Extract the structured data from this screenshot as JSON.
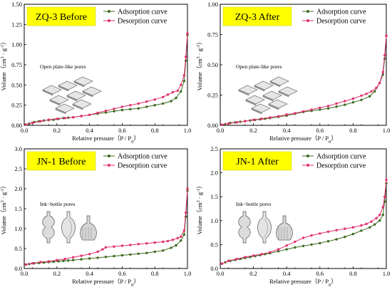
{
  "chart_data": [
    {
      "type": "line",
      "title": "ZQ-3 Before",
      "xlabel": "Relative pressure（P / P0）",
      "ylabel": "Volume（cm3 · g-1）",
      "xlim": [
        0,
        1.0
      ],
      "ylim": [
        0,
        1.5
      ],
      "xticks": [
        "0.0",
        "0.2",
        "0.4",
        "0.6",
        "0.8",
        "1.0"
      ],
      "yticks": [
        "0.00",
        "0.25",
        "0.50",
        "0.75",
        "1.00",
        "1.25",
        "1.50"
      ],
      "yticks_values": [
        0,
        0.25,
        0.5,
        0.75,
        1.0,
        1.25,
        1.5
      ],
      "legend": [
        "Adsorption curve",
        "Desorption curve"
      ],
      "annotation": "Open plate-like pores",
      "pore_shape": "plates",
      "series": [
        {
          "name": "Adsorption curve",
          "color": "#3d6b1f",
          "x": [
            0.01,
            0.03,
            0.06,
            0.09,
            0.12,
            0.15,
            0.18,
            0.21,
            0.24,
            0.27,
            0.3,
            0.35,
            0.4,
            0.45,
            0.5,
            0.55,
            0.6,
            0.65,
            0.7,
            0.75,
            0.8,
            0.85,
            0.9,
            0.93,
            0.96,
            0.98,
            0.99,
            1.0
          ],
          "y": [
            0.01,
            0.02,
            0.04,
            0.05,
            0.06,
            0.065,
            0.07,
            0.08,
            0.09,
            0.095,
            0.1,
            0.115,
            0.13,
            0.145,
            0.16,
            0.175,
            0.19,
            0.2,
            0.21,
            0.23,
            0.25,
            0.27,
            0.3,
            0.34,
            0.42,
            0.55,
            0.8,
            1.12
          ]
        },
        {
          "name": "Desorption curve",
          "color": "#e0316e",
          "x": [
            0.01,
            0.05,
            0.1,
            0.15,
            0.2,
            0.25,
            0.3,
            0.35,
            0.4,
            0.45,
            0.5,
            0.55,
            0.6,
            0.65,
            0.7,
            0.75,
            0.8,
            0.85,
            0.88,
            0.91,
            0.94,
            0.96,
            0.98,
            0.99,
            1.0
          ],
          "y": [
            0.01,
            0.03,
            0.05,
            0.07,
            0.08,
            0.09,
            0.1,
            0.115,
            0.13,
            0.155,
            0.18,
            0.205,
            0.23,
            0.25,
            0.27,
            0.295,
            0.32,
            0.35,
            0.38,
            0.41,
            0.43,
            0.5,
            0.62,
            0.85,
            1.14
          ]
        }
      ]
    },
    {
      "type": "line",
      "title": "ZQ-3 After",
      "xlabel": "Relative pressure（P / P0）",
      "ylabel": "Volume（cm3 · g-1）",
      "xlim": [
        0,
        1.0
      ],
      "ylim": [
        0,
        1.0
      ],
      "xticks": [
        "0.0",
        "0.2",
        "0.4",
        "0.6",
        "0.8",
        "1.0"
      ],
      "yticks": [
        "0.00",
        "0.25",
        "0.50",
        "0.75",
        "1.00"
      ],
      "yticks_values": [
        0,
        0.25,
        0.5,
        0.75,
        1.0
      ],
      "legend": [
        "Adsorption curve",
        "Desorption curve"
      ],
      "annotation": "Open plate-like pores",
      "pore_shape": "plates",
      "series": [
        {
          "name": "Adsorption curve",
          "color": "#3d6b1f",
          "x": [
            0.01,
            0.03,
            0.06,
            0.09,
            0.12,
            0.15,
            0.18,
            0.21,
            0.24,
            0.27,
            0.3,
            0.35,
            0.4,
            0.45,
            0.5,
            0.55,
            0.6,
            0.65,
            0.7,
            0.75,
            0.8,
            0.85,
            0.9,
            0.93,
            0.96,
            0.98,
            0.99,
            1.0
          ],
          "y": [
            0.005,
            0.01,
            0.02,
            0.025,
            0.03,
            0.035,
            0.04,
            0.045,
            0.05,
            0.055,
            0.06,
            0.07,
            0.08,
            0.095,
            0.11,
            0.12,
            0.13,
            0.14,
            0.155,
            0.17,
            0.19,
            0.21,
            0.24,
            0.28,
            0.35,
            0.42,
            0.55,
            0.74
          ]
        },
        {
          "name": "Desorption curve",
          "color": "#e0316e",
          "x": [
            0.01,
            0.05,
            0.1,
            0.15,
            0.2,
            0.25,
            0.3,
            0.35,
            0.4,
            0.45,
            0.5,
            0.55,
            0.6,
            0.65,
            0.7,
            0.75,
            0.8,
            0.85,
            0.88,
            0.91,
            0.94,
            0.96,
            0.98,
            0.99,
            1.0
          ],
          "y": [
            0.005,
            0.015,
            0.025,
            0.035,
            0.045,
            0.055,
            0.065,
            0.075,
            0.09,
            0.1,
            0.115,
            0.13,
            0.145,
            0.16,
            0.18,
            0.2,
            0.22,
            0.245,
            0.26,
            0.28,
            0.31,
            0.35,
            0.44,
            0.58,
            0.74
          ]
        }
      ]
    },
    {
      "type": "line",
      "title": "JN-1 Before",
      "xlabel": "Relative pressure（P / P0）",
      "ylabel": "Volume（cm3 · g-1）",
      "xlim": [
        0,
        1.0
      ],
      "ylim": [
        0,
        3.0
      ],
      "xticks": [
        "0.0",
        "0.2",
        "0.4",
        "0.6",
        "0.8",
        "1.0"
      ],
      "yticks": [
        "0.0",
        "0.5",
        "1.0",
        "1.5",
        "2.0",
        "2.5",
        "3.0"
      ],
      "yticks_values": [
        0,
        0.5,
        1.0,
        1.5,
        2.0,
        2.5,
        3.0
      ],
      "legend": [
        "Adsorption curve",
        "Desorption curve"
      ],
      "annotation": "Ink−bottle pores",
      "pore_shape": "bottles",
      "series": [
        {
          "name": "Adsorption curve",
          "color": "#3d6b1f",
          "x": [
            0.01,
            0.03,
            0.06,
            0.09,
            0.12,
            0.15,
            0.18,
            0.21,
            0.24,
            0.27,
            0.3,
            0.35,
            0.4,
            0.45,
            0.5,
            0.55,
            0.6,
            0.65,
            0.7,
            0.75,
            0.8,
            0.85,
            0.9,
            0.93,
            0.96,
            0.98,
            0.99,
            1.0
          ],
          "y": [
            0.1,
            0.11,
            0.13,
            0.14,
            0.15,
            0.16,
            0.17,
            0.18,
            0.19,
            0.2,
            0.21,
            0.23,
            0.25,
            0.27,
            0.29,
            0.31,
            0.33,
            0.35,
            0.37,
            0.39,
            0.42,
            0.45,
            0.52,
            0.58,
            0.7,
            0.85,
            1.3,
            1.95
          ]
        },
        {
          "name": "Desorption curve",
          "color": "#e0316e",
          "x": [
            0.01,
            0.05,
            0.1,
            0.15,
            0.2,
            0.25,
            0.3,
            0.35,
            0.4,
            0.45,
            0.48,
            0.5,
            0.55,
            0.6,
            0.65,
            0.7,
            0.75,
            0.8,
            0.85,
            0.88,
            0.91,
            0.94,
            0.96,
            0.98,
            0.99,
            1.0
          ],
          "y": [
            0.1,
            0.13,
            0.16,
            0.18,
            0.21,
            0.24,
            0.28,
            0.32,
            0.36,
            0.42,
            0.48,
            0.53,
            0.55,
            0.57,
            0.59,
            0.61,
            0.63,
            0.65,
            0.67,
            0.69,
            0.72,
            0.76,
            0.8,
            0.95,
            1.4,
            2.0
          ]
        }
      ]
    },
    {
      "type": "line",
      "title": "JN-1 After",
      "xlabel": "Relative pressure（P / P0）",
      "ylabel": "Volume（cm3 · g-1）",
      "xlim": [
        0,
        1.0
      ],
      "ylim": [
        0,
        2.5
      ],
      "xticks": [
        "0.0",
        "0.2",
        "0.4",
        "0.6",
        "0.8",
        "1.0"
      ],
      "yticks": [
        "0.0",
        "0.5",
        "1.0",
        "1.5",
        "2.0",
        "2.5"
      ],
      "yticks_values": [
        0,
        0.5,
        1.0,
        1.5,
        2.0,
        2.5
      ],
      "legend": [
        "Adsorption curve",
        "Desorption curve"
      ],
      "annotation": "Ink−bottle pores",
      "pore_shape": "bottles",
      "series": [
        {
          "name": "Adsorption curve",
          "color": "#3d6b1f",
          "x": [
            0.01,
            0.03,
            0.06,
            0.09,
            0.12,
            0.15,
            0.18,
            0.21,
            0.24,
            0.27,
            0.3,
            0.35,
            0.4,
            0.45,
            0.5,
            0.55,
            0.6,
            0.65,
            0.7,
            0.75,
            0.8,
            0.85,
            0.9,
            0.93,
            0.96,
            0.98,
            0.99,
            1.0
          ],
          "y": [
            0.1,
            0.13,
            0.16,
            0.18,
            0.2,
            0.22,
            0.24,
            0.26,
            0.28,
            0.3,
            0.32,
            0.36,
            0.4,
            0.44,
            0.47,
            0.5,
            0.53,
            0.57,
            0.61,
            0.66,
            0.72,
            0.79,
            0.86,
            0.92,
            1.0,
            1.12,
            1.4,
            1.78
          ]
        },
        {
          "name": "Desorption curve",
          "color": "#e0316e",
          "x": [
            0.01,
            0.05,
            0.1,
            0.15,
            0.2,
            0.25,
            0.3,
            0.35,
            0.4,
            0.45,
            0.5,
            0.55,
            0.6,
            0.65,
            0.7,
            0.75,
            0.8,
            0.85,
            0.88,
            0.91,
            0.94,
            0.96,
            0.98,
            0.99,
            1.0
          ],
          "y": [
            0.1,
            0.16,
            0.2,
            0.24,
            0.27,
            0.3,
            0.34,
            0.4,
            0.48,
            0.56,
            0.64,
            0.69,
            0.73,
            0.77,
            0.8,
            0.83,
            0.86,
            0.9,
            0.93,
            0.98,
            1.05,
            1.12,
            1.28,
            1.5,
            1.85
          ]
        }
      ]
    }
  ]
}
